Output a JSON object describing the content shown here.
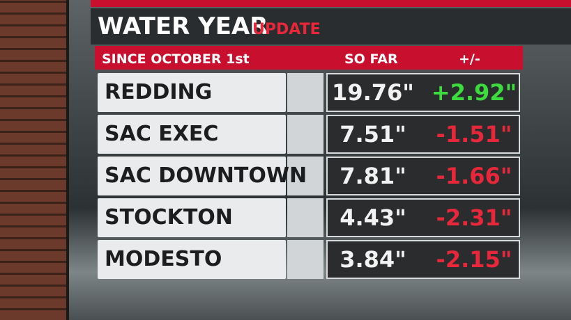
{
  "header": {
    "title": "WATER YEAR",
    "subtitle": "UPDATE"
  },
  "table": {
    "columns": [
      "SINCE OCTOBER 1st",
      "SO FAR",
      "+/-"
    ],
    "rows": [
      [
        "REDDING",
        "19.76\"",
        "+2.92\""
      ],
      [
        "SAC EXEC",
        "7.51\"",
        "-1.51\""
      ],
      [
        "SAC DOWNTOWN",
        "7.81\"",
        "-1.66\""
      ],
      [
        "STOCKTON",
        "4.43\"",
        "-2.31\""
      ],
      [
        "MODESTO",
        "3.84\"",
        "-2.15\""
      ]
    ]
  }
}
